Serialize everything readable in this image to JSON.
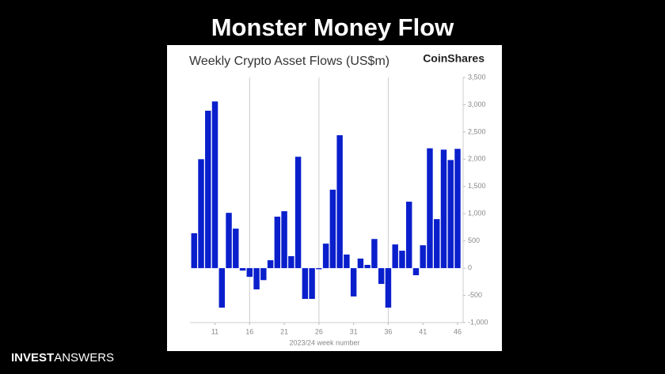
{
  "heading": "Monster Money Flow",
  "brand": {
    "bold": "INVEST",
    "light": "ANSWERS"
  },
  "chart_data": {
    "type": "bar",
    "title": "Weekly Crypto Asset Flows (US$m)",
    "source": "CoinShares",
    "x_label": "2023/24 week number",
    "color": "#0a1fcc",
    "x": [
      8,
      9,
      10,
      11,
      12,
      13,
      14,
      15,
      16,
      17,
      18,
      19,
      20,
      21,
      22,
      23,
      24,
      25,
      26,
      27,
      28,
      29,
      30,
      31,
      32,
      33,
      34,
      35,
      36,
      37,
      38,
      39,
      40,
      41,
      42,
      43,
      44,
      45,
      46
    ],
    "values": [
      640,
      2000,
      2890,
      3060,
      -725,
      1015,
      725,
      -45,
      -160,
      -390,
      -220,
      145,
      945,
      1045,
      220,
      2045,
      -565,
      -565,
      -20,
      450,
      1440,
      2440,
      250,
      -520,
      175,
      60,
      535,
      -290,
      -725,
      435,
      320,
      1220,
      -130,
      420,
      2200,
      900,
      2175,
      1985,
      2190
    ],
    "xlim": [
      7.4,
      46.8
    ],
    "xticks": [
      11,
      16,
      21,
      26,
      31,
      36,
      41,
      46
    ],
    "xgrid": [
      16,
      26,
      36
    ],
    "ylim": [
      -1000,
      3500
    ],
    "yticks": [
      {
        "value": -1000,
        "label": "-1,000"
      },
      -500,
      0,
      500,
      {
        "value": 1000,
        "label": "1,000"
      },
      {
        "value": 1500,
        "label": "1,500"
      },
      {
        "value": 2000,
        "label": "2,000"
      },
      {
        "value": 2500,
        "label": "2,500"
      },
      {
        "value": 3000,
        "label": "3,000"
      },
      {
        "value": 3500,
        "label": "3,500"
      }
    ],
    "y_axis_side": "right"
  }
}
